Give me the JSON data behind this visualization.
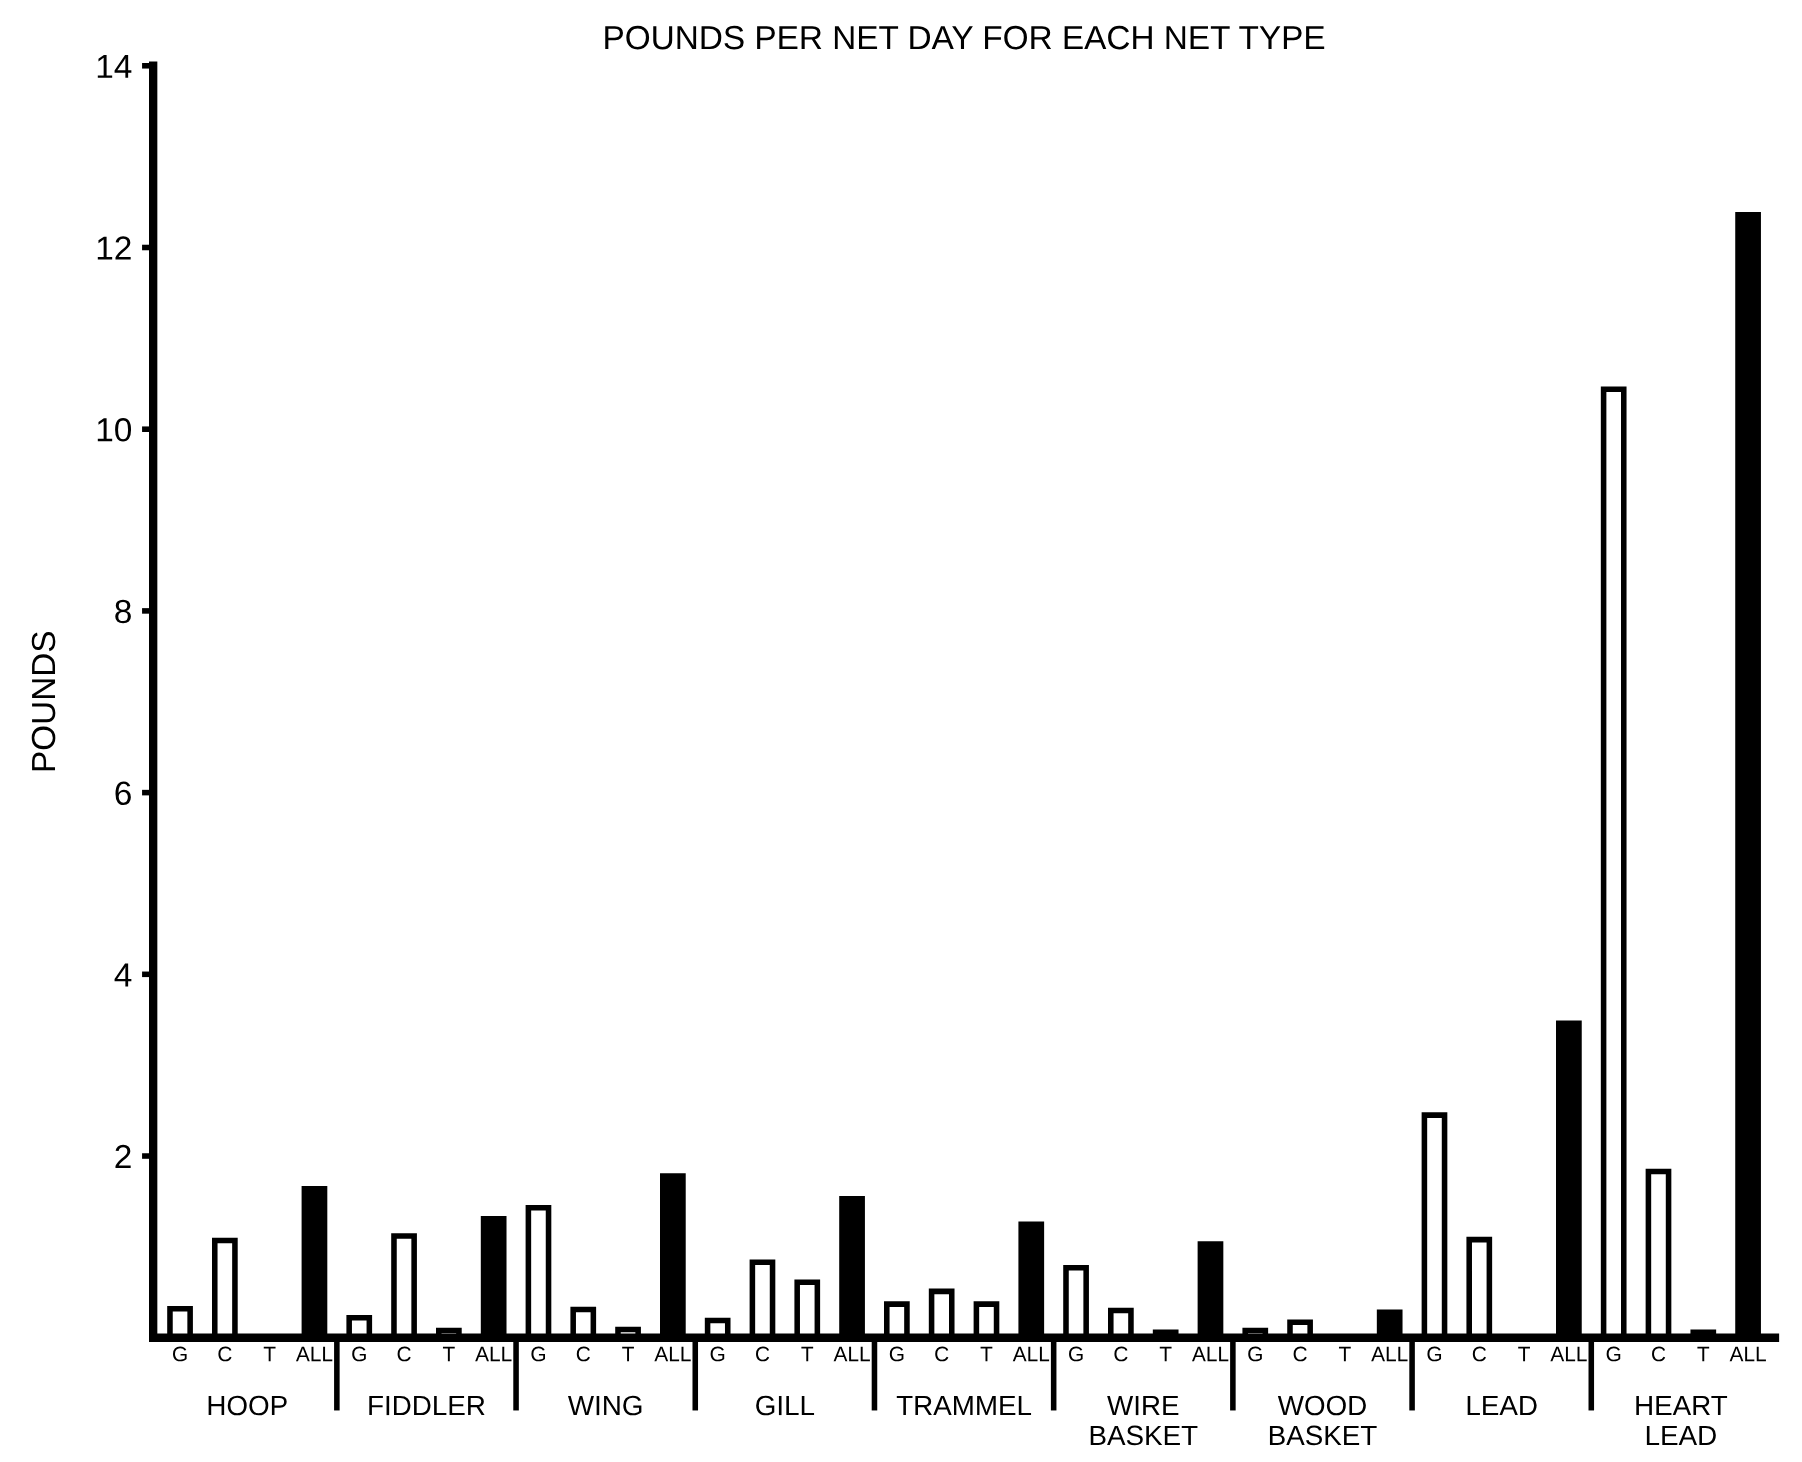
{
  "chart_data": {
    "type": "bar",
    "title": "POUNDS PER NET DAY FOR EACH NET TYPE",
    "ylabel": "POUNDS",
    "categories": [
      "G",
      "C",
      "T",
      "ALL",
      "G",
      "C",
      "T",
      "ALL",
      "G",
      "C",
      "T",
      "ALL",
      "G",
      "C",
      "T",
      "ALL",
      "G",
      "C",
      "T",
      "ALL",
      "G",
      "C",
      "T",
      "ALL",
      "G",
      "C",
      "T",
      "ALL",
      "G",
      "C",
      "T",
      "ALL",
      "G",
      "C",
      "T",
      "ALL"
    ],
    "values": [
      0.32,
      1.07,
      0,
      1.64,
      0.22,
      1.12,
      0.08,
      1.31,
      1.43,
      0.31,
      0.09,
      1.78,
      0.19,
      0.83,
      0.61,
      1.53,
      0.37,
      0.51,
      0.37,
      1.25,
      0.77,
      0.3,
      0.06,
      1.03,
      0.08,
      0.17,
      0,
      0.28,
      2.45,
      1.08,
      0,
      3.46,
      10.44,
      1.83,
      0.06,
      12.36
    ],
    "colors": [
      "#ffffff",
      "#ffffff",
      "#ffffff",
      "#000000",
      "#ffffff",
      "#ffffff",
      "#ffffff",
      "#000000",
      "#ffffff",
      "#ffffff",
      "#ffffff",
      "#000000",
      "#ffffff",
      "#ffffff",
      "#ffffff",
      "#000000",
      "#ffffff",
      "#ffffff",
      "#ffffff",
      "#000000",
      "#ffffff",
      "#ffffff",
      "#ffffff",
      "#000000",
      "#ffffff",
      "#ffffff",
      "#ffffff",
      "#000000",
      "#ffffff",
      "#ffffff",
      "#ffffff",
      "#000000",
      "#ffffff",
      "#ffffff",
      "#ffffff",
      "#000000"
    ],
    "annotations": [
      "HOOP",
      "FIDDLER",
      "WING",
      "GILL",
      "TRAMMEL",
      "WIRE\nBASKET",
      "WOOD\nBASKET",
      "LEAD",
      "HEART\nLEAD"
    ],
    "ylim": [
      0,
      14
    ],
    "yticks": [
      2,
      4,
      6,
      8,
      10,
      12,
      14
    ],
    "grid": false,
    "legend": false
  }
}
